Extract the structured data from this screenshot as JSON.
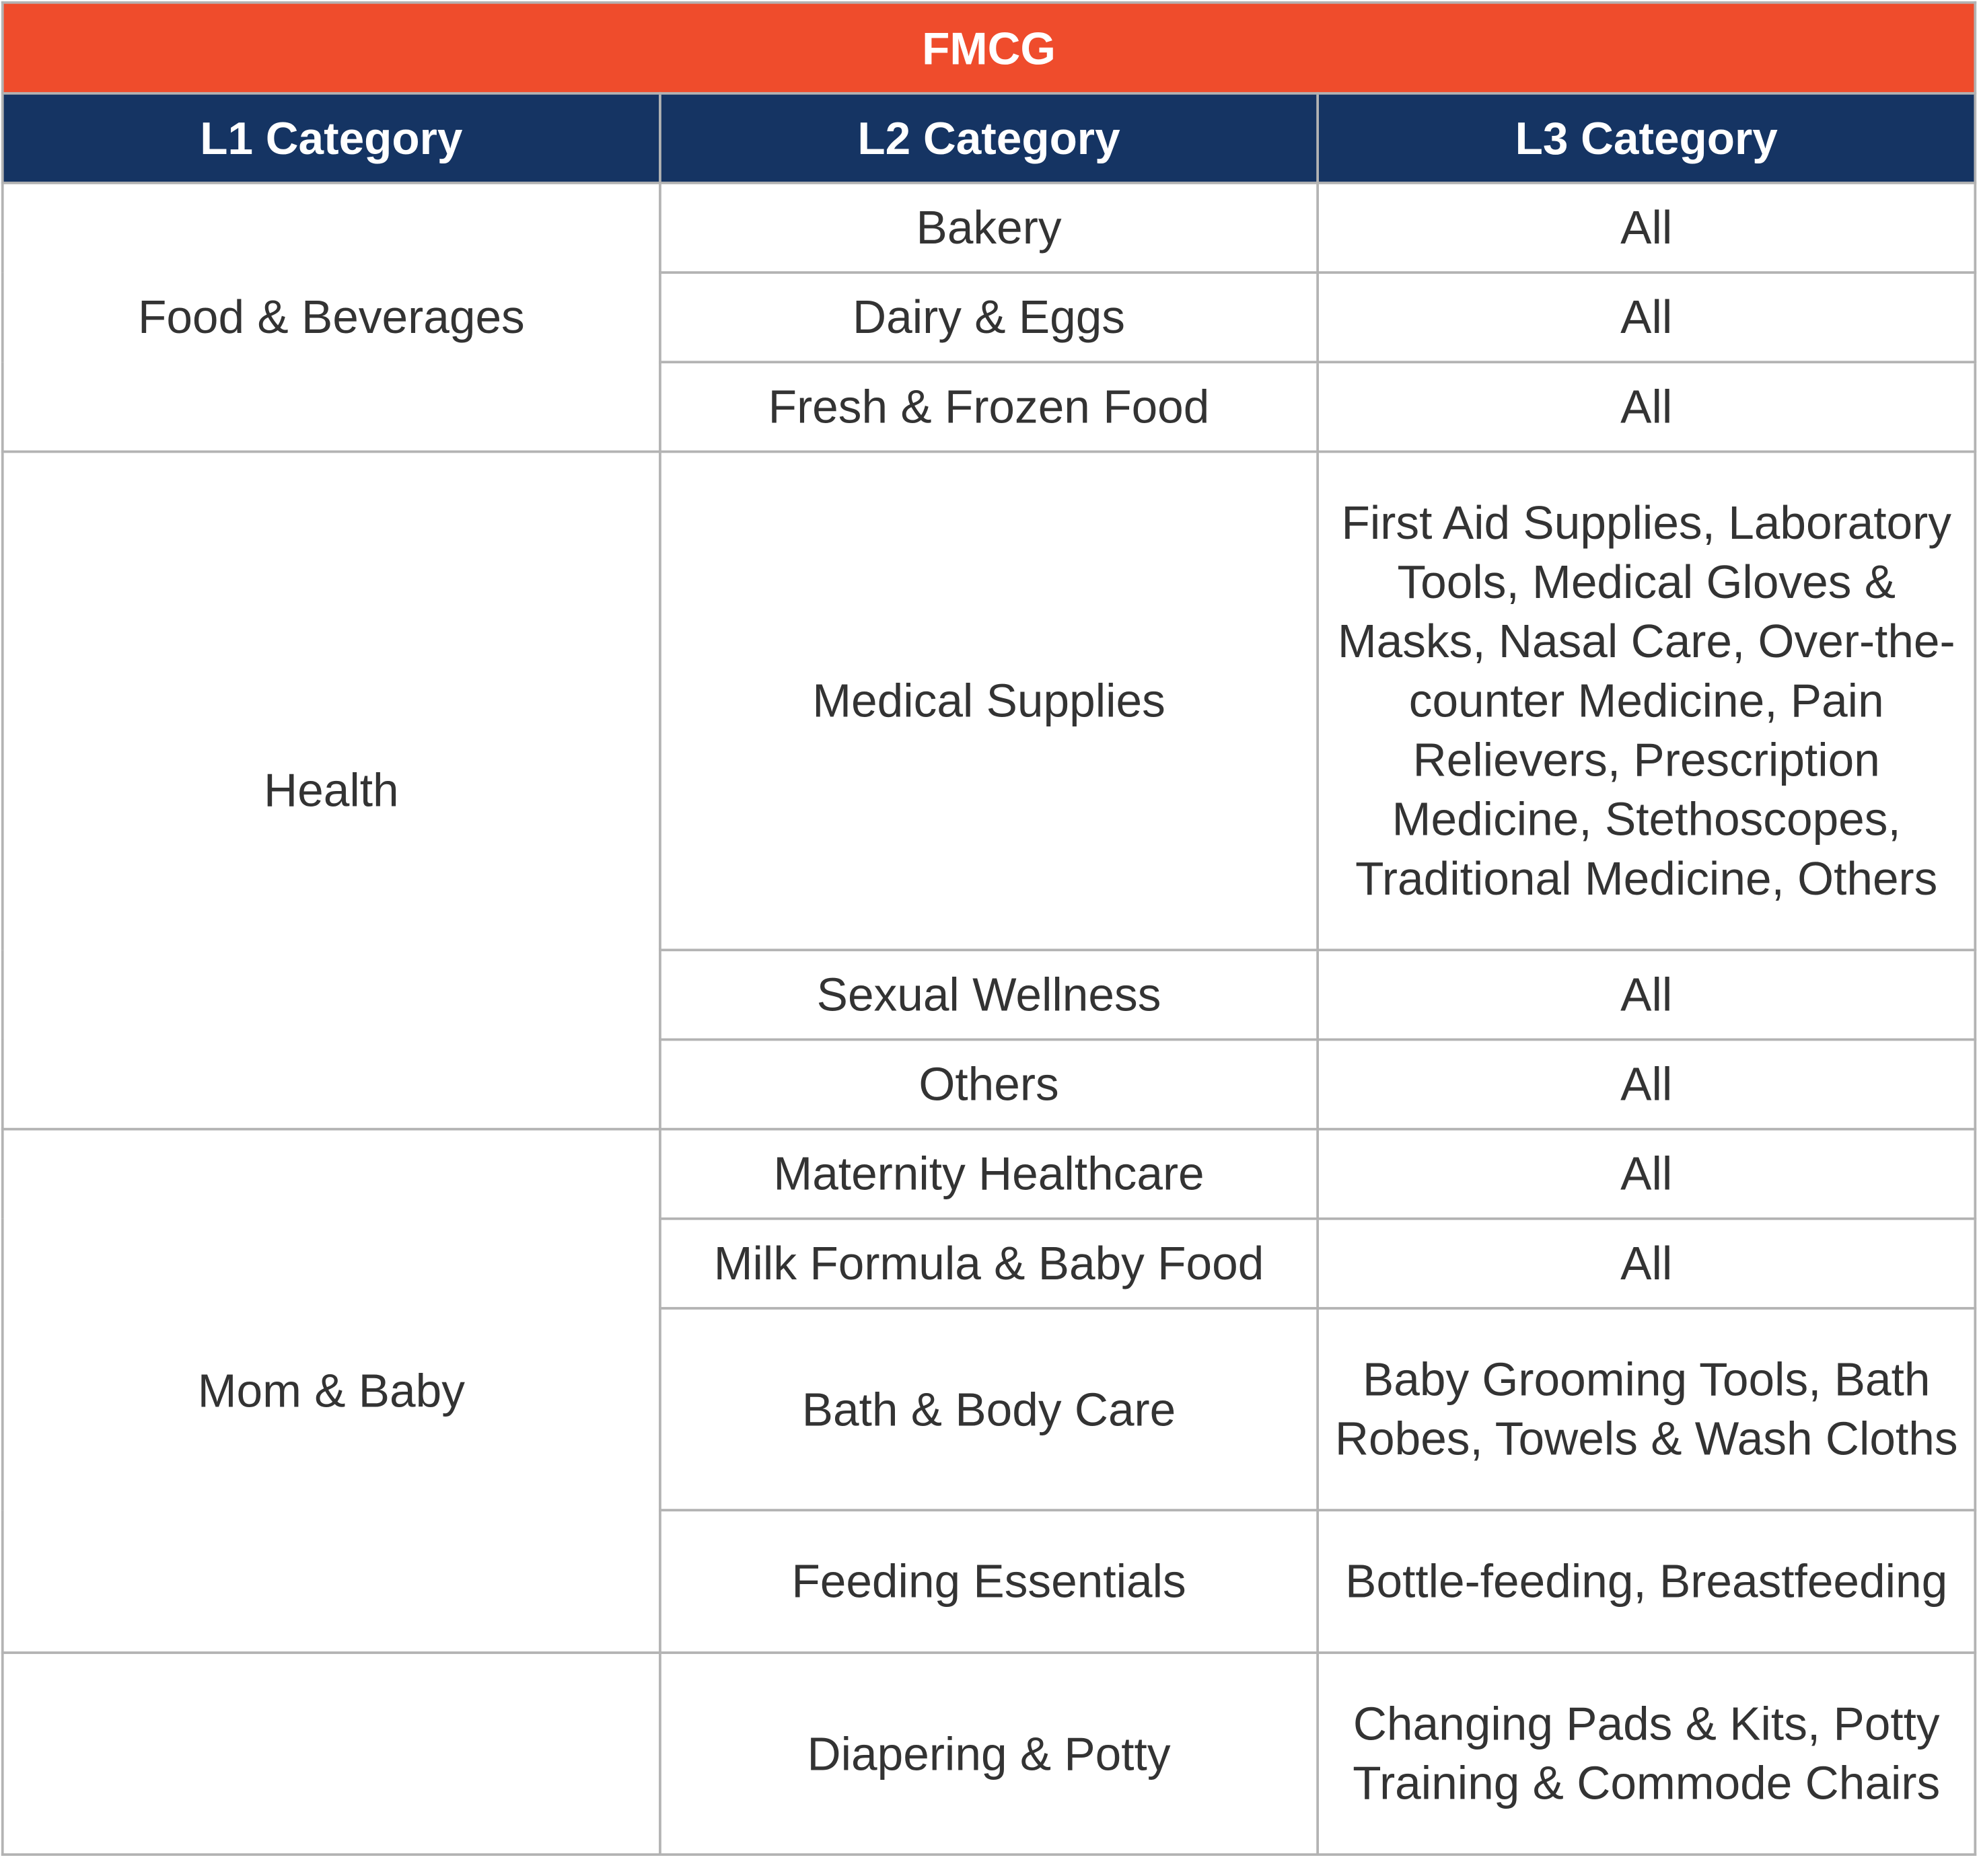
{
  "table": {
    "title": "FMCG",
    "headers": [
      "L1 Category",
      "L2 Category",
      "L3 Category"
    ],
    "groups": [
      {
        "l1": "Food & Beverages",
        "rows": [
          {
            "l2": "Bakery",
            "l3": "All"
          },
          {
            "l2": "Dairy & Eggs",
            "l3": "All"
          },
          {
            "l2": "Fresh & Frozen Food",
            "l3": "All"
          }
        ]
      },
      {
        "l1": "Health",
        "rows": [
          {
            "l2": "Medical Supplies",
            "l3": "First Aid Supplies, Laboratory Tools, Medical Gloves & Masks, Nasal Care, Over-the-counter Medicine, Pain Relievers, Prescription Medicine, Stethoscopes, Traditional Medicine, Others"
          },
          {
            "l2": "Sexual Wellness",
            "l3": "All"
          },
          {
            "l2": "Others",
            "l3": "All"
          }
        ]
      },
      {
        "l1": "Mom & Baby",
        "rows": [
          {
            "l2": "Maternity Healthcare",
            "l3": "All"
          },
          {
            "l2": "Milk Formula & Baby Food",
            "l3": "All"
          },
          {
            "l2": "Bath & Body Care",
            "l3": "Baby Grooming Tools, Bath Robes, Towels & Wash Cloths"
          },
          {
            "l2": "Feeding Essentials",
            "l3": "Bottle-feeding, Breastfeeding"
          }
        ]
      },
      {
        "l1": "",
        "rows": [
          {
            "l2": "Diapering & Potty",
            "l3": "Changing Pads & Kits, Potty Training & Commode Chairs"
          }
        ]
      }
    ]
  },
  "colors": {
    "title_bg": "#ef4c2c",
    "header_bg": "#153463",
    "header_text": "#ffffff",
    "border": "#b3b3b3",
    "body_text": "#333333"
  }
}
